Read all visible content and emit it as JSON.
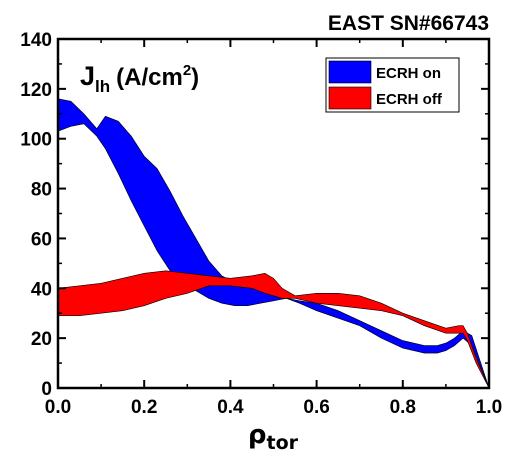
{
  "chart_data": {
    "type": "area",
    "title": "EAST SN#66743",
    "annotation": {
      "base": "J",
      "sub": "lh",
      "unit_pre": "(A/cm",
      "unit_sup": "2",
      "unit_post": ")"
    },
    "xlabel": {
      "base": "ρ",
      "sub": "tor"
    },
    "xlim": [
      0.0,
      1.0
    ],
    "ylim": [
      0,
      140
    ],
    "xticks": [
      "0.0",
      "0.2",
      "0.4",
      "0.6",
      "0.8",
      "1.0"
    ],
    "yticks": [
      "0",
      "20",
      "40",
      "60",
      "80",
      "100",
      "120",
      "140"
    ],
    "grid": false,
    "legend_position": "top-right",
    "series": [
      {
        "name": "ECRH on",
        "color": "#0000ff",
        "x": [
          0.0,
          0.03,
          0.06,
          0.09,
          0.11,
          0.14,
          0.17,
          0.2,
          0.23,
          0.26,
          0.29,
          0.32,
          0.35,
          0.38,
          0.41,
          0.44,
          0.47,
          0.5,
          0.53,
          0.56,
          0.6,
          0.65,
          0.7,
          0.75,
          0.8,
          0.85,
          0.88,
          0.9,
          0.92,
          0.94,
          0.96,
          1.0
        ],
        "upper": [
          116,
          115,
          110,
          104,
          109,
          107,
          101,
          93,
          88,
          79,
          69,
          60,
          51,
          45,
          42,
          41,
          39,
          37,
          36,
          35,
          34,
          31,
          27,
          23,
          19,
          17,
          17,
          18,
          20,
          23,
          21,
          0
        ],
        "lower": [
          103,
          105,
          106,
          101,
          96,
          86,
          75,
          65,
          55,
          47,
          42,
          39,
          36,
          34,
          33,
          33,
          34,
          35,
          36,
          34,
          31,
          28,
          25,
          20,
          16,
          14,
          14,
          15,
          17,
          20,
          17,
          0
        ]
      },
      {
        "name": "ECRH off",
        "color": "#ff0000",
        "x": [
          0.0,
          0.05,
          0.1,
          0.15,
          0.2,
          0.25,
          0.3,
          0.35,
          0.4,
          0.45,
          0.48,
          0.5,
          0.52,
          0.55,
          0.6,
          0.65,
          0.7,
          0.75,
          0.8,
          0.85,
          0.9,
          0.93,
          0.94,
          0.95,
          0.97,
          1.0
        ],
        "upper": [
          40,
          41,
          42,
          44,
          46,
          47,
          46,
          45,
          44,
          45,
          46,
          44,
          40,
          37,
          38,
          38,
          37,
          34,
          30,
          27,
          24,
          25,
          25,
          22,
          12,
          0
        ],
        "lower": [
          29,
          29,
          30,
          31,
          33,
          36,
          38,
          41,
          41,
          40,
          38,
          37,
          36,
          36,
          34,
          33,
          32,
          31,
          29,
          25,
          22,
          22,
          22,
          19,
          10,
          0
        ]
      }
    ]
  }
}
